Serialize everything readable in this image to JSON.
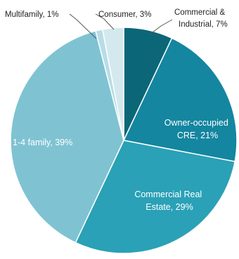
{
  "chart_data": {
    "type": "pie",
    "title": "",
    "slices": [
      {
        "name": "Commercial & Industrial",
        "value": 7,
        "label_lines": [
          "Commercial &",
          "Industrial, 7%"
        ],
        "color": "#0b6677"
      },
      {
        "name": "Owner-occupied CRE",
        "value": 21,
        "label_lines": [
          "Owner-occupied",
          "CRE, 21%"
        ],
        "color": "#1486a0"
      },
      {
        "name": "Commercial Real Estate",
        "value": 29,
        "label_lines": [
          "Commercial Real",
          "Estate, 29%"
        ],
        "color": "#2aa1b6"
      },
      {
        "name": "1-4 family",
        "value": 39,
        "label_lines": [
          "1-4 family, 39%"
        ],
        "color": "#7fc3d2"
      },
      {
        "name": "Multifamily",
        "value": 1,
        "label_lines": [
          "Multifamily, 1%"
        ],
        "color": "#b8dde6"
      },
      {
        "name": "Consumer",
        "value": 3,
        "label_lines": [
          "Consumer, 3%"
        ],
        "color": "#d4e9ee"
      }
    ],
    "start_angle": "12 o'clock",
    "direction": "clockwise",
    "slice_border_color": "#ffffff",
    "leader_line_color": "#555555"
  }
}
